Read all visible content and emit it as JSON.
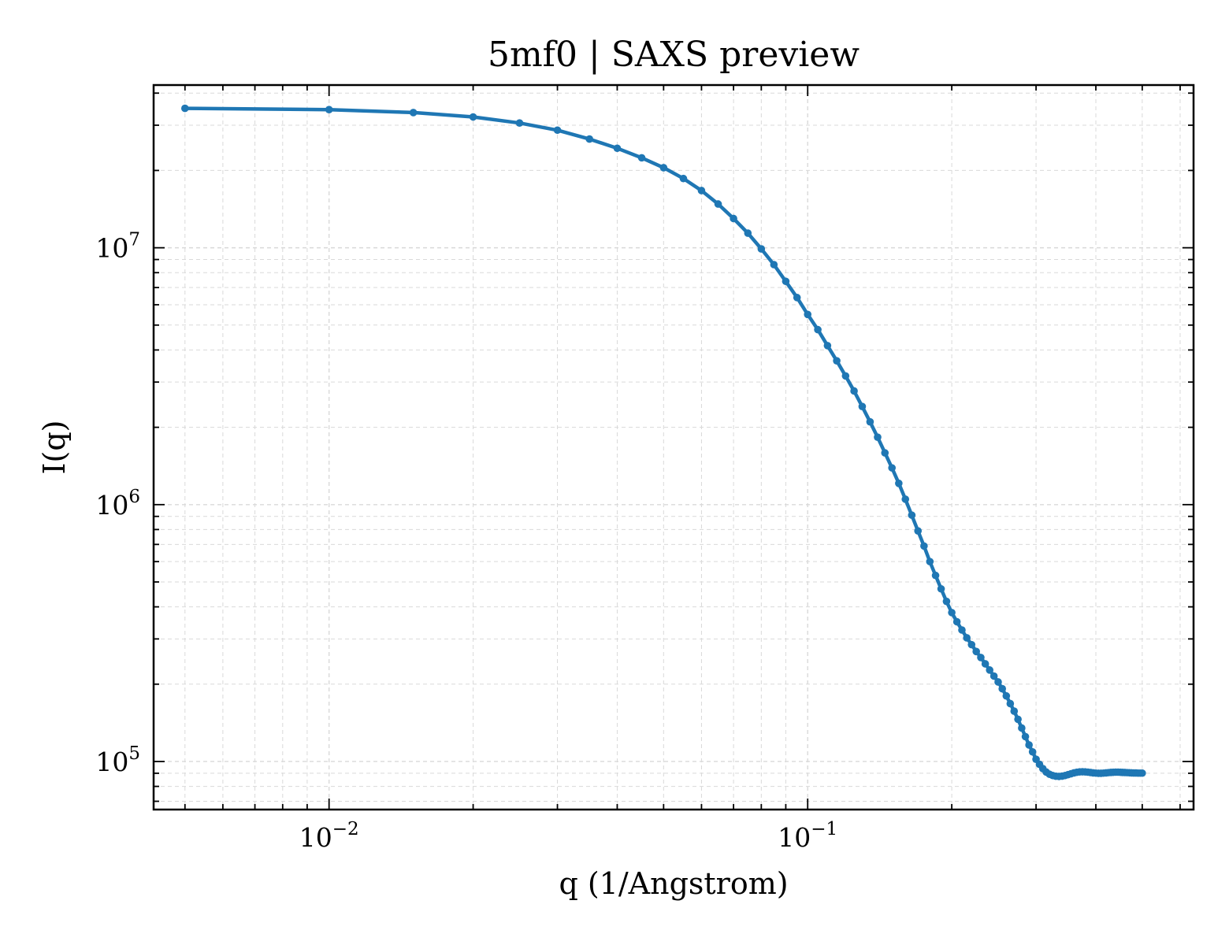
{
  "chart_data": {
    "type": "line",
    "title": "5mf0 | SAXS preview",
    "xlabel": "q (1/Angstrom)",
    "ylabel": "I(q)",
    "xscale": "log",
    "yscale": "log",
    "xlim": [
      0.0043,
      0.64
    ],
    "ylim": [
      65000,
      43000000
    ],
    "grid": true,
    "x_ticks": [
      {
        "value": 0.01,
        "base": "10",
        "exp": "−2"
      },
      {
        "value": 0.1,
        "base": "10",
        "exp": "−1"
      }
    ],
    "y_ticks": [
      {
        "value": 100000,
        "base": "10",
        "exp": "5"
      },
      {
        "value": 1000000,
        "base": "10",
        "exp": "6"
      },
      {
        "value": 10000000,
        "base": "10",
        "exp": "7"
      }
    ],
    "colors": {
      "series": "#1f77b4",
      "grid": "#d9d9d9",
      "axes": "#000000"
    },
    "series": [
      {
        "x": [
          0.005,
          0.01,
          0.015,
          0.02,
          0.025,
          0.03,
          0.035,
          0.04,
          0.045,
          0.05,
          0.055,
          0.06,
          0.065,
          0.07,
          0.075,
          0.08,
          0.085,
          0.09,
          0.095,
          0.1,
          0.105,
          0.11,
          0.115,
          0.12,
          0.125,
          0.13,
          0.135,
          0.14,
          0.145,
          0.15,
          0.155,
          0.16,
          0.165,
          0.17,
          0.175,
          0.18,
          0.185,
          0.19,
          0.195,
          0.2,
          0.205,
          0.21,
          0.215,
          0.22,
          0.225,
          0.23,
          0.235,
          0.24,
          0.245,
          0.25,
          0.255,
          0.26,
          0.265,
          0.27,
          0.275,
          0.28,
          0.285,
          0.29,
          0.295,
          0.3,
          0.305,
          0.31,
          0.315,
          0.32,
          0.325,
          0.33,
          0.335,
          0.34,
          0.345,
          0.35,
          0.355,
          0.36,
          0.365,
          0.37,
          0.375,
          0.38,
          0.385,
          0.39,
          0.395,
          0.4,
          0.405,
          0.41,
          0.415,
          0.42,
          0.425,
          0.43,
          0.435,
          0.44,
          0.445,
          0.45,
          0.455,
          0.46,
          0.465,
          0.47,
          0.475,
          0.48,
          0.485,
          0.49,
          0.495,
          0.5
        ],
        "y": [
          34900000,
          34500000,
          33600000,
          32300000,
          30600000,
          28700000,
          26500000,
          24400000,
          22400000,
          20500000,
          18600000,
          16700000,
          14800000,
          13000000,
          11400000,
          9900000,
          8600000,
          7400000,
          6400000,
          5500000,
          4800000,
          4160000,
          3630000,
          3170000,
          2770000,
          2410000,
          2100000,
          1830000,
          1590000,
          1390000,
          1210000,
          1050000,
          910000,
          790000,
          690000,
          600000,
          530000,
          470000,
          420000,
          380000,
          350000,
          325000,
          303000,
          285000,
          268000,
          254000,
          240000,
          227000,
          215000,
          204000,
          192000,
          180000,
          168000,
          157000,
          146000,
          135000,
          125000,
          116000,
          109000,
          102000,
          97500,
          93800,
          91000,
          89200,
          88200,
          87600,
          87500,
          87700,
          88200,
          88900,
          89600,
          90300,
          90800,
          91100,
          91200,
          91100,
          90900,
          90600,
          90300,
          90100,
          90000,
          90000,
          90100,
          90300,
          90500,
          90700,
          90800,
          90900,
          90900,
          90800,
          90700,
          90600,
          90500,
          90400,
          90300,
          90200,
          90200,
          90100,
          90100,
          90100
        ]
      }
    ]
  }
}
